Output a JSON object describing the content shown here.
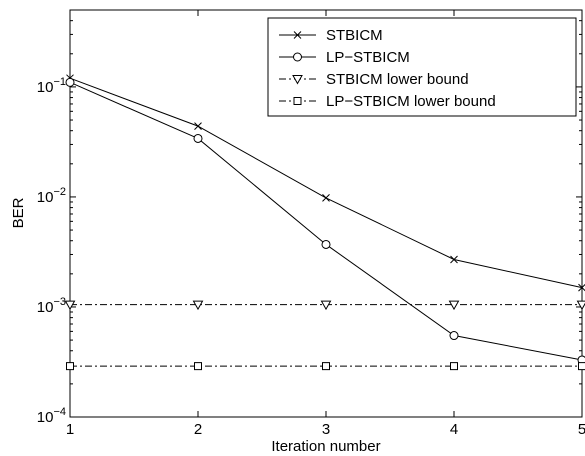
{
  "chart_data": {
    "type": "line",
    "title": "",
    "xlabel": "Iteration number",
    "ylabel": "BER",
    "xlim": [
      1,
      5
    ],
    "ylim": [
      0.0001,
      0.5
    ],
    "yscale": "log",
    "grid": false,
    "legend_position": "top-right",
    "x_ticks": [
      1,
      2,
      3,
      4,
      5
    ],
    "x_tick_labels": [
      "1",
      "2",
      "3",
      "4",
      "5"
    ],
    "y_ticks": [
      {
        "value": 0.1,
        "base": "10",
        "exp": "−1"
      },
      {
        "value": 0.01,
        "base": "10",
        "exp": "−2"
      },
      {
        "value": 0.001,
        "base": "10",
        "exp": "−3"
      },
      {
        "value": 0.0001,
        "base": "10",
        "exp": "−4"
      }
    ],
    "x": [
      1,
      2,
      3,
      4,
      5
    ],
    "series": [
      {
        "name": "STBICM",
        "marker": "x",
        "line_style": "solid",
        "values": [
          0.12,
          0.044,
          0.0098,
          0.0027,
          0.0015
        ]
      },
      {
        "name": "LP−STBICM",
        "marker": "circle",
        "line_style": "solid",
        "values": [
          0.11,
          0.034,
          0.0037,
          0.00055,
          0.00033
        ]
      },
      {
        "name": "STBICM lower bound",
        "marker": "triangle-down",
        "line_style": "dash-dot",
        "values": [
          0.00105,
          0.00105,
          0.00105,
          0.00105,
          0.00105
        ]
      },
      {
        "name": "LP−STBICM lower bound",
        "marker": "square",
        "line_style": "dash-dot",
        "values": [
          0.00029,
          0.00029,
          0.00029,
          0.00029,
          0.00029
        ]
      }
    ]
  }
}
